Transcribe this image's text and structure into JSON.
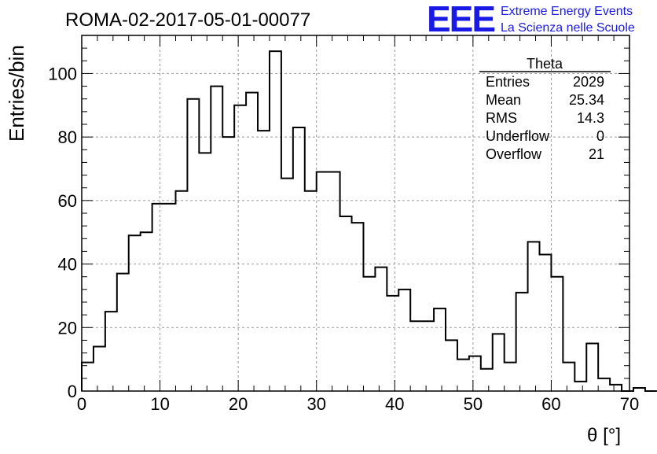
{
  "chart_data": {
    "type": "histogram",
    "title": "ROMA-02-2017-05-01-00077",
    "xlabel": "θ [°]",
    "ylabel": "Entries/bin",
    "xlim": [
      0,
      70
    ],
    "ylim": [
      0,
      112
    ],
    "grid": true,
    "xticks": [
      0,
      10,
      20,
      30,
      40,
      50,
      60,
      70
    ],
    "yticks": [
      0,
      20,
      40,
      60,
      80,
      100
    ],
    "bin_width": 1.5,
    "bin_edges_start": 0,
    "values": [
      9,
      14,
      25,
      37,
      49,
      50,
      59,
      59,
      63,
      92,
      75,
      96,
      80,
      90,
      94,
      82,
      107,
      67,
      83,
      63,
      69,
      69,
      55,
      53,
      36,
      39,
      30,
      32,
      22,
      22,
      26,
      16,
      10,
      11,
      7,
      18,
      9,
      31,
      47,
      43,
      36,
      9,
      3,
      15,
      4,
      2,
      0,
      1,
      0
    ],
    "stats_box": {
      "title": "Theta",
      "rows": [
        {
          "label": "Entries",
          "value": "2029"
        },
        {
          "label": "Mean",
          "value": "25.34"
        },
        {
          "label": "RMS",
          "value": "14.3"
        },
        {
          "label": "Underflow",
          "value": "0"
        },
        {
          "label": "Overflow",
          "value": "21"
        }
      ]
    }
  },
  "logo": {
    "mark": "EEE",
    "line1": "Extreme Energy Events",
    "line2": "La Scienza nelle Scuole",
    "color": "#1a1ae6"
  }
}
